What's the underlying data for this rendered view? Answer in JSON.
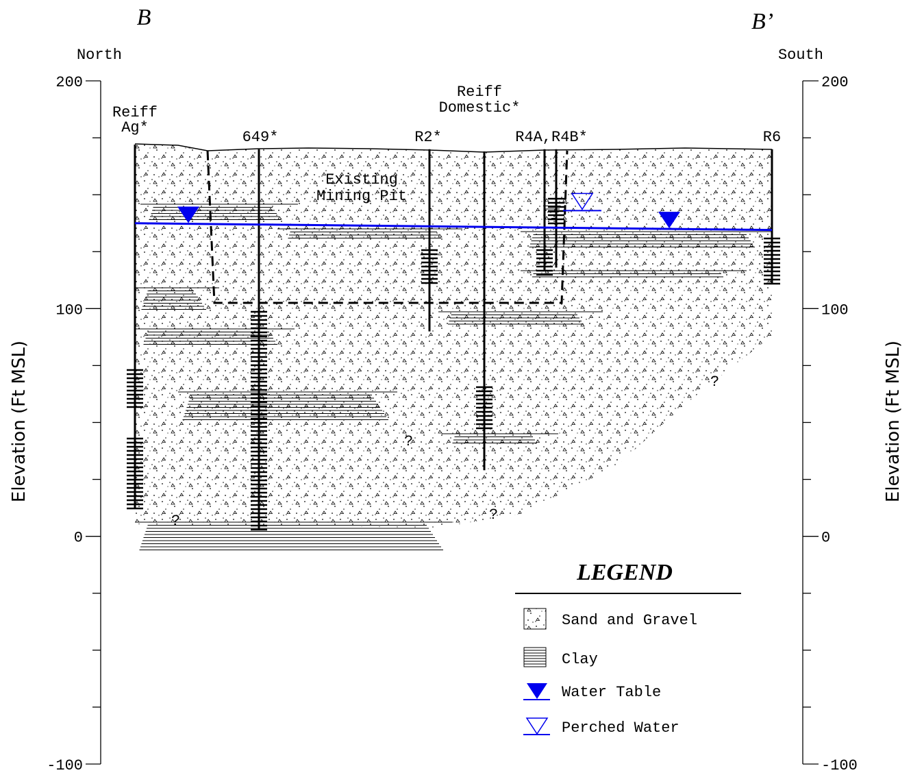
{
  "section": {
    "start": "B",
    "end": "B’",
    "left_direction": "North",
    "right_direction": "South"
  },
  "axis": {
    "label": "Elevation (Ft MSL)",
    "ylim": [
      -100,
      200
    ],
    "yticks": [
      -100,
      0,
      100,
      200
    ],
    "minor_ticks": [
      -75,
      -50,
      -25,
      25,
      50,
      75,
      125,
      150,
      175
    ]
  },
  "wells": [
    {
      "label": [
        "Reiff",
        "Ag*"
      ],
      "top": 172,
      "bottom": 12
    },
    {
      "label": [
        "649*"
      ],
      "top": 170,
      "bottom": 3
    },
    {
      "label": [
        "R2*"
      ],
      "top": 170,
      "bottom": 90
    },
    {
      "label": [
        "Reiff",
        "Domestic*"
      ],
      "top": 169,
      "bottom": 29
    },
    {
      "label": [
        "R4A,R4B*"
      ],
      "top": 170,
      "bottom": 117
    },
    {
      "label": [],
      "top": 170,
      "bottom": 118
    },
    {
      "label": [
        "R6"
      ],
      "top": 170,
      "bottom": 111
    }
  ],
  "pit_label": [
    "Existing",
    "Mining Pit"
  ],
  "water_table": {
    "left": 137.5,
    "right": 134.5
  },
  "perched_water": 143,
  "annotations": [
    "?",
    "?",
    "?",
    "?"
  ],
  "legend": {
    "title": "LEGEND",
    "items": [
      "Sand and Gravel",
      "Clay",
      "Water Table",
      "Perched Water"
    ]
  }
}
